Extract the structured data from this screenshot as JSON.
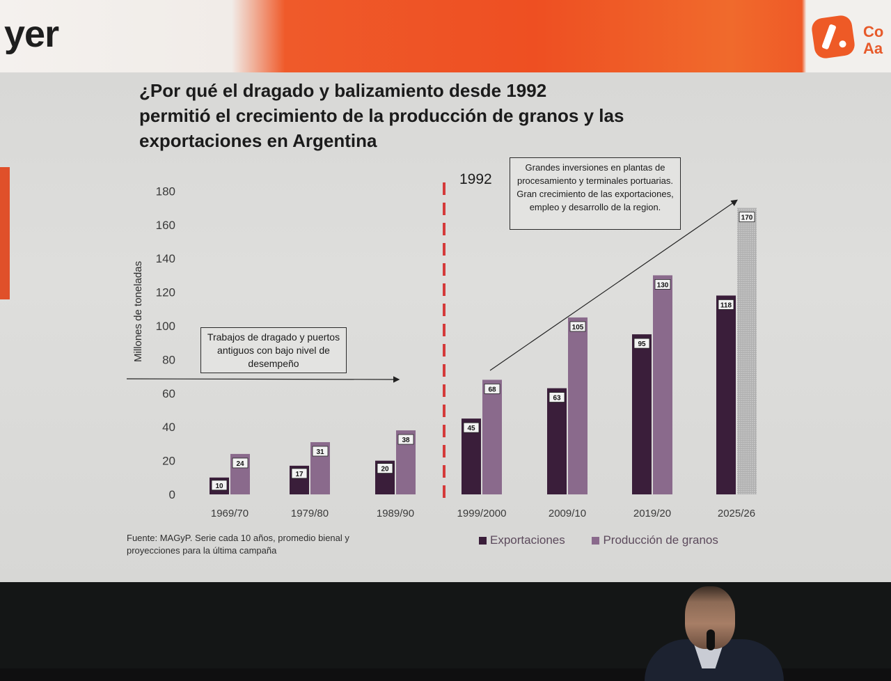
{
  "banner": {
    "partial_word": "yer",
    "logo_text": [
      "Co",
      "Aa"
    ]
  },
  "slide": {
    "title_lines": [
      "¿Por qué el dragado y balizamiento desde 1992",
      "permitió el crecimiento de la producción de granos y las",
      "exportaciones en Argentina"
    ],
    "marker_label": "1992",
    "callout_left": "Trabajos de dragado y puertos antiguos con bajo nivel de desempeño",
    "callout_right": "Grandes inversiones en plantas de procesamiento y terminales portuarias. Gran crecimiento de las exportaciones, empleo y desarrollo de la region.",
    "source": "Fuente: MAGyP. Serie cada 10 años, promedio bienal y proyecciones para la última campaña"
  },
  "chart_data": {
    "type": "bar",
    "title": "¿Por qué el dragado y balizamiento desde 1992 permitió el crecimiento de la producción de granos y las exportaciones en Argentina",
    "xlabel": "",
    "ylabel": "Millones de toneladas",
    "ylim": [
      0,
      180
    ],
    "yticks": [
      0,
      20,
      40,
      60,
      80,
      100,
      120,
      140,
      160,
      180
    ],
    "grid": false,
    "legend_position": "bottom-right",
    "categories": [
      "1969/70",
      "1979/80",
      "1989/90",
      "1999/2000",
      "2009/10",
      "2019/20",
      "2025/26"
    ],
    "series": [
      {
        "name": "Exportaciones",
        "color": "#3a1e3a",
        "values": [
          10,
          17,
          20,
          45,
          63,
          95,
          118
        ]
      },
      {
        "name": "Producción de granos",
        "color": "#8a6a8c",
        "values": [
          24,
          31,
          38,
          68,
          105,
          130,
          170
        ]
      }
    ],
    "vertical_marker": {
      "between": [
        "1989/90",
        "1999/2000"
      ],
      "label": "1992",
      "color": "#d43a3a"
    }
  }
}
